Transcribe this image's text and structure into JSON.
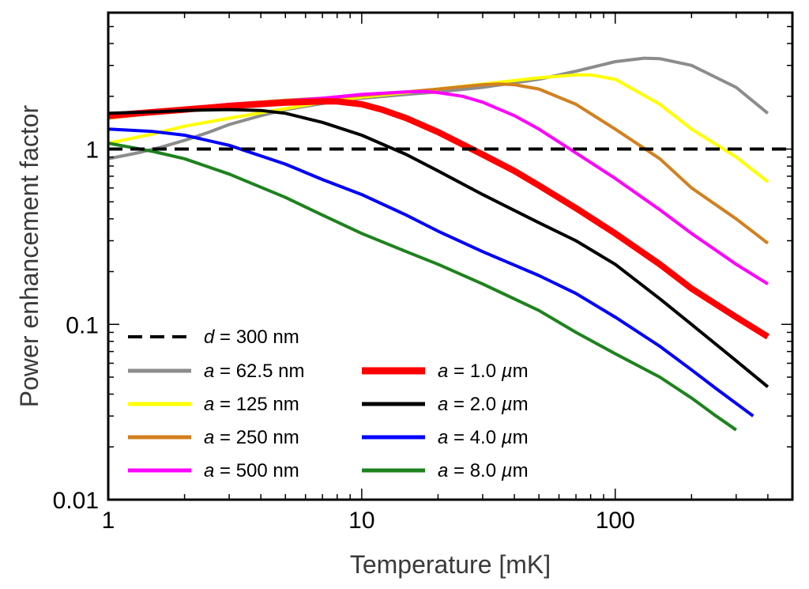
{
  "chart_data": {
    "type": "line",
    "title": "",
    "xlabel": "Temperature [mK]",
    "ylabel": "Power enhancement factor",
    "xscale": "log",
    "yscale": "log",
    "xlim": [
      1,
      500
    ],
    "ylim": [
      0.01,
      6
    ],
    "xticks": [
      {
        "value": 1,
        "label": "1"
      },
      {
        "value": 10,
        "label": "10"
      },
      {
        "value": 100,
        "label": "100"
      }
    ],
    "yticks": [
      {
        "value": 0.01,
        "label": "0.01"
      },
      {
        "value": 0.1,
        "label": "0.1"
      },
      {
        "value": 1,
        "label": "1"
      }
    ],
    "grid": false,
    "legend_position": "bottom-left",
    "reference_line": {
      "name": "d = 300 nm",
      "italic": "d",
      "rest": " = 300 nm",
      "y": 1,
      "color": "#000000",
      "dashed": true
    },
    "series": [
      {
        "name": "a = 62.5 nm",
        "italic": "a",
        "rest": " = 62.5 nm",
        "color": "#8c8c8c",
        "width": 4,
        "x": [
          1,
          1.3,
          1.6,
          2,
          2.5,
          3,
          4,
          5,
          7,
          10,
          15,
          20,
          30,
          50,
          70,
          100,
          130,
          150,
          200,
          300,
          400
        ],
        "y": [
          0.88,
          0.95,
          1.02,
          1.12,
          1.25,
          1.38,
          1.55,
          1.68,
          1.82,
          1.95,
          2.05,
          2.12,
          2.25,
          2.5,
          2.78,
          3.15,
          3.3,
          3.28,
          3.0,
          2.25,
          1.6
        ]
      },
      {
        "name": "a = 125 nm",
        "italic": "a",
        "rest": " = 125 nm",
        "color": "#ffff00",
        "width": 4,
        "x": [
          1,
          1.5,
          2,
          3,
          5,
          7,
          10,
          15,
          20,
          30,
          50,
          70,
          80,
          100,
          150,
          200,
          300,
          400
        ],
        "y": [
          1.08,
          1.22,
          1.35,
          1.5,
          1.7,
          1.85,
          1.98,
          2.1,
          2.2,
          2.35,
          2.55,
          2.65,
          2.65,
          2.5,
          1.8,
          1.3,
          0.9,
          0.65
        ]
      },
      {
        "name": "a = 250 nm",
        "italic": "a",
        "rest": " = 250 nm",
        "color": "#d2801e",
        "width": 4,
        "x": [
          1,
          1.5,
          2,
          3,
          5,
          7,
          10,
          15,
          20,
          30,
          35,
          40,
          50,
          70,
          100,
          150,
          200,
          300,
          400
        ],
        "y": [
          1.5,
          1.6,
          1.7,
          1.8,
          1.9,
          1.95,
          2.02,
          2.12,
          2.2,
          2.33,
          2.35,
          2.33,
          2.2,
          1.8,
          1.3,
          0.88,
          0.6,
          0.4,
          0.29
        ]
      },
      {
        "name": "a = 500 nm",
        "italic": "a",
        "rest": " = 500 nm",
        "color": "#ff00ff",
        "width": 4,
        "x": [
          1,
          2,
          3,
          5,
          7,
          10,
          15,
          18,
          20,
          25,
          30,
          40,
          50,
          70,
          100,
          150,
          200,
          300,
          400
        ],
        "y": [
          1.55,
          1.7,
          1.8,
          1.88,
          1.95,
          2.05,
          2.12,
          2.13,
          2.1,
          2.0,
          1.85,
          1.55,
          1.3,
          0.95,
          0.68,
          0.45,
          0.33,
          0.22,
          0.17
        ]
      },
      {
        "name": "a = 1.0 µm",
        "italic": "a",
        "rest": " = 1.0 ",
        "unit_italic": "µ",
        "unit_rest": "m",
        "color": "#ff0000",
        "width": 8,
        "x": [
          1,
          2,
          3,
          5,
          7,
          8,
          10,
          12,
          15,
          20,
          30,
          40,
          50,
          70,
          100,
          150,
          200,
          300,
          400
        ],
        "y": [
          1.55,
          1.68,
          1.76,
          1.84,
          1.87,
          1.87,
          1.8,
          1.68,
          1.5,
          1.25,
          0.93,
          0.75,
          0.62,
          0.46,
          0.33,
          0.22,
          0.16,
          0.11,
          0.085
        ]
      },
      {
        "name": "a = 2.0 µm",
        "italic": "a",
        "rest": " = 2.0 ",
        "unit_italic": "µ",
        "unit_rest": "m",
        "color": "#000000",
        "width": 4,
        "x": [
          1,
          1.5,
          2,
          3,
          4,
          5,
          7,
          10,
          15,
          20,
          30,
          50,
          70,
          100,
          150,
          200,
          300,
          400
        ],
        "y": [
          1.6,
          1.63,
          1.66,
          1.68,
          1.66,
          1.6,
          1.42,
          1.2,
          0.93,
          0.75,
          0.55,
          0.38,
          0.3,
          0.22,
          0.14,
          0.1,
          0.062,
          0.044
        ]
      },
      {
        "name": "a = 4.0 µm",
        "italic": "a",
        "rest": " = 4.0 ",
        "unit_italic": "µ",
        "unit_rest": "m",
        "color": "#0000ff",
        "width": 4,
        "x": [
          1,
          1.5,
          2,
          3,
          5,
          7,
          10,
          15,
          20,
          30,
          50,
          70,
          100,
          150,
          200,
          250,
          350
        ],
        "y": [
          1.3,
          1.26,
          1.2,
          1.05,
          0.82,
          0.67,
          0.55,
          0.42,
          0.34,
          0.26,
          0.19,
          0.15,
          0.11,
          0.075,
          0.055,
          0.043,
          0.03
        ]
      },
      {
        "name": "a = 8.0 µm",
        "italic": "a",
        "rest": " = 8.0 ",
        "unit_italic": "µ",
        "unit_rest": "m",
        "color": "#1e821e",
        "width": 4,
        "x": [
          1,
          1.5,
          2,
          3,
          5,
          7,
          10,
          15,
          20,
          30,
          50,
          70,
          100,
          150,
          200,
          250,
          300
        ],
        "y": [
          1.08,
          0.97,
          0.88,
          0.72,
          0.53,
          0.42,
          0.33,
          0.26,
          0.22,
          0.17,
          0.12,
          0.09,
          0.068,
          0.05,
          0.038,
          0.03,
          0.025
        ]
      }
    ]
  }
}
